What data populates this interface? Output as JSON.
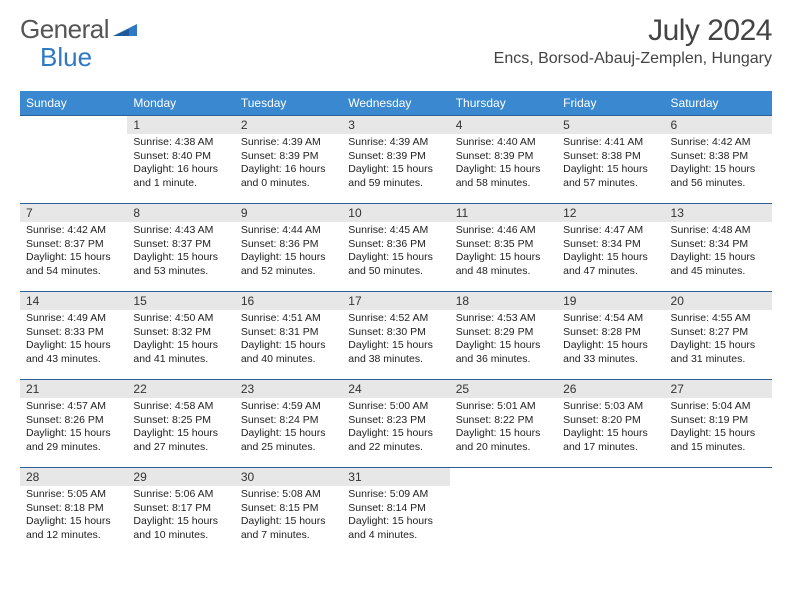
{
  "brand": {
    "word1": "General",
    "word2": "Blue"
  },
  "title": "July 2024",
  "location": "Encs, Borsod-Abauj-Zemplen, Hungary",
  "dayHeaders": [
    "Sunday",
    "Monday",
    "Tuesday",
    "Wednesday",
    "Thursday",
    "Friday",
    "Saturday"
  ],
  "style": {
    "headerBg": "#3a89d0",
    "headerFg": "#ffffff",
    "dayNumBg": "#e7e7e7",
    "cellBorder": "#2d5f95",
    "pageBg": "#ffffff",
    "textColor": "#333333",
    "titleColor": "#444444",
    "logoGray": "#555555",
    "logoBlue": "#2f79c4"
  },
  "weeks": [
    [
      null,
      {
        "n": "1",
        "sr": "Sunrise: 4:38 AM",
        "ss": "Sunset: 8:40 PM",
        "d1": "Daylight: 16 hours",
        "d2": "and 1 minute."
      },
      {
        "n": "2",
        "sr": "Sunrise: 4:39 AM",
        "ss": "Sunset: 8:39 PM",
        "d1": "Daylight: 16 hours",
        "d2": "and 0 minutes."
      },
      {
        "n": "3",
        "sr": "Sunrise: 4:39 AM",
        "ss": "Sunset: 8:39 PM",
        "d1": "Daylight: 15 hours",
        "d2": "and 59 minutes."
      },
      {
        "n": "4",
        "sr": "Sunrise: 4:40 AM",
        "ss": "Sunset: 8:39 PM",
        "d1": "Daylight: 15 hours",
        "d2": "and 58 minutes."
      },
      {
        "n": "5",
        "sr": "Sunrise: 4:41 AM",
        "ss": "Sunset: 8:38 PM",
        "d1": "Daylight: 15 hours",
        "d2": "and 57 minutes."
      },
      {
        "n": "6",
        "sr": "Sunrise: 4:42 AM",
        "ss": "Sunset: 8:38 PM",
        "d1": "Daylight: 15 hours",
        "d2": "and 56 minutes."
      }
    ],
    [
      {
        "n": "7",
        "sr": "Sunrise: 4:42 AM",
        "ss": "Sunset: 8:37 PM",
        "d1": "Daylight: 15 hours",
        "d2": "and 54 minutes."
      },
      {
        "n": "8",
        "sr": "Sunrise: 4:43 AM",
        "ss": "Sunset: 8:37 PM",
        "d1": "Daylight: 15 hours",
        "d2": "and 53 minutes."
      },
      {
        "n": "9",
        "sr": "Sunrise: 4:44 AM",
        "ss": "Sunset: 8:36 PM",
        "d1": "Daylight: 15 hours",
        "d2": "and 52 minutes."
      },
      {
        "n": "10",
        "sr": "Sunrise: 4:45 AM",
        "ss": "Sunset: 8:36 PM",
        "d1": "Daylight: 15 hours",
        "d2": "and 50 minutes."
      },
      {
        "n": "11",
        "sr": "Sunrise: 4:46 AM",
        "ss": "Sunset: 8:35 PM",
        "d1": "Daylight: 15 hours",
        "d2": "and 48 minutes."
      },
      {
        "n": "12",
        "sr": "Sunrise: 4:47 AM",
        "ss": "Sunset: 8:34 PM",
        "d1": "Daylight: 15 hours",
        "d2": "and 47 minutes."
      },
      {
        "n": "13",
        "sr": "Sunrise: 4:48 AM",
        "ss": "Sunset: 8:34 PM",
        "d1": "Daylight: 15 hours",
        "d2": "and 45 minutes."
      }
    ],
    [
      {
        "n": "14",
        "sr": "Sunrise: 4:49 AM",
        "ss": "Sunset: 8:33 PM",
        "d1": "Daylight: 15 hours",
        "d2": "and 43 minutes."
      },
      {
        "n": "15",
        "sr": "Sunrise: 4:50 AM",
        "ss": "Sunset: 8:32 PM",
        "d1": "Daylight: 15 hours",
        "d2": "and 41 minutes."
      },
      {
        "n": "16",
        "sr": "Sunrise: 4:51 AM",
        "ss": "Sunset: 8:31 PM",
        "d1": "Daylight: 15 hours",
        "d2": "and 40 minutes."
      },
      {
        "n": "17",
        "sr": "Sunrise: 4:52 AM",
        "ss": "Sunset: 8:30 PM",
        "d1": "Daylight: 15 hours",
        "d2": "and 38 minutes."
      },
      {
        "n": "18",
        "sr": "Sunrise: 4:53 AM",
        "ss": "Sunset: 8:29 PM",
        "d1": "Daylight: 15 hours",
        "d2": "and 36 minutes."
      },
      {
        "n": "19",
        "sr": "Sunrise: 4:54 AM",
        "ss": "Sunset: 8:28 PM",
        "d1": "Daylight: 15 hours",
        "d2": "and 33 minutes."
      },
      {
        "n": "20",
        "sr": "Sunrise: 4:55 AM",
        "ss": "Sunset: 8:27 PM",
        "d1": "Daylight: 15 hours",
        "d2": "and 31 minutes."
      }
    ],
    [
      {
        "n": "21",
        "sr": "Sunrise: 4:57 AM",
        "ss": "Sunset: 8:26 PM",
        "d1": "Daylight: 15 hours",
        "d2": "and 29 minutes."
      },
      {
        "n": "22",
        "sr": "Sunrise: 4:58 AM",
        "ss": "Sunset: 8:25 PM",
        "d1": "Daylight: 15 hours",
        "d2": "and 27 minutes."
      },
      {
        "n": "23",
        "sr": "Sunrise: 4:59 AM",
        "ss": "Sunset: 8:24 PM",
        "d1": "Daylight: 15 hours",
        "d2": "and 25 minutes."
      },
      {
        "n": "24",
        "sr": "Sunrise: 5:00 AM",
        "ss": "Sunset: 8:23 PM",
        "d1": "Daylight: 15 hours",
        "d2": "and 22 minutes."
      },
      {
        "n": "25",
        "sr": "Sunrise: 5:01 AM",
        "ss": "Sunset: 8:22 PM",
        "d1": "Daylight: 15 hours",
        "d2": "and 20 minutes."
      },
      {
        "n": "26",
        "sr": "Sunrise: 5:03 AM",
        "ss": "Sunset: 8:20 PM",
        "d1": "Daylight: 15 hours",
        "d2": "and 17 minutes."
      },
      {
        "n": "27",
        "sr": "Sunrise: 5:04 AM",
        "ss": "Sunset: 8:19 PM",
        "d1": "Daylight: 15 hours",
        "d2": "and 15 minutes."
      }
    ],
    [
      {
        "n": "28",
        "sr": "Sunrise: 5:05 AM",
        "ss": "Sunset: 8:18 PM",
        "d1": "Daylight: 15 hours",
        "d2": "and 12 minutes."
      },
      {
        "n": "29",
        "sr": "Sunrise: 5:06 AM",
        "ss": "Sunset: 8:17 PM",
        "d1": "Daylight: 15 hours",
        "d2": "and 10 minutes."
      },
      {
        "n": "30",
        "sr": "Sunrise: 5:08 AM",
        "ss": "Sunset: 8:15 PM",
        "d1": "Daylight: 15 hours",
        "d2": "and 7 minutes."
      },
      {
        "n": "31",
        "sr": "Sunrise: 5:09 AM",
        "ss": "Sunset: 8:14 PM",
        "d1": "Daylight: 15 hours",
        "d2": "and 4 minutes."
      },
      null,
      null,
      null
    ]
  ]
}
